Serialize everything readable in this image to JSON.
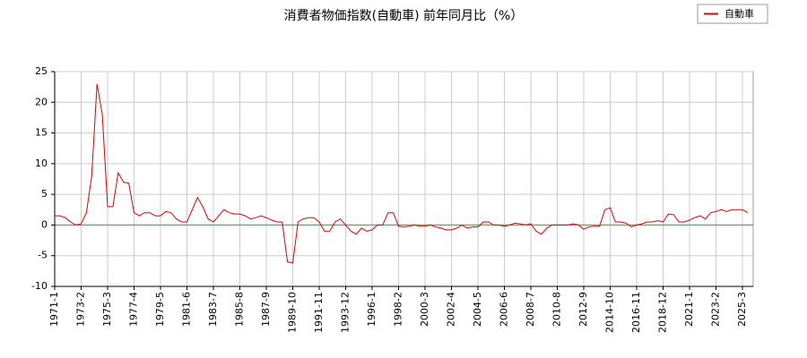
{
  "chart_data": {
    "type": "line",
    "title": "消費者物価指数(自動車) 前年同月比（%）",
    "categories": [
      "1971-1",
      null,
      null,
      null,
      null,
      "1973-2",
      null,
      null,
      null,
      null,
      "1975-3",
      null,
      null,
      null,
      null,
      "1977-4",
      null,
      null,
      null,
      null,
      "1979-5",
      null,
      null,
      null,
      null,
      "1981-6",
      null,
      null,
      null,
      null,
      "1983-7",
      null,
      null,
      null,
      null,
      "1985-8",
      null,
      null,
      null,
      null,
      "1987-9",
      null,
      null,
      null,
      null,
      "1989-10",
      null,
      null,
      null,
      null,
      "1991-11",
      null,
      null,
      null,
      null,
      "1993-12",
      null,
      null,
      null,
      null,
      "1996-1",
      null,
      null,
      null,
      null,
      "1998-2",
      null,
      null,
      null,
      null,
      "2000-3",
      null,
      null,
      null,
      null,
      "2002-4",
      null,
      null,
      null,
      null,
      "2004-5",
      null,
      null,
      null,
      null,
      "2006-6",
      null,
      null,
      null,
      null,
      "2008-7",
      null,
      null,
      null,
      null,
      "2010-8",
      null,
      null,
      null,
      null,
      "2012-9",
      null,
      null,
      null,
      null,
      "2014-10",
      null,
      null,
      null,
      null,
      "2016-11",
      null,
      null,
      null,
      null,
      "2018-12",
      null,
      null,
      null,
      null,
      "2021-1",
      null,
      null,
      null,
      null,
      "2023-2",
      null,
      null,
      null,
      null,
      "2025-3",
      null
    ],
    "series": [
      {
        "name": "自動車",
        "color": "#dd0000",
        "values": [
          1.5,
          1.5,
          1.2,
          0.5,
          0,
          0.2,
          2,
          8,
          23,
          18,
          3,
          3,
          8.5,
          7,
          6.8,
          2,
          1.5,
          2,
          2,
          1.5,
          1.5,
          2.2,
          2,
          1,
          0.5,
          0.5,
          2.5,
          4.5,
          3,
          1,
          0.5,
          1.5,
          2.5,
          2,
          1.8,
          1.8,
          1.5,
          1,
          1.2,
          1.5,
          1.2,
          0.8,
          0.5,
          0.5,
          -6,
          -6.2,
          0.5,
          1,
          1.2,
          1.2,
          0.5,
          -1,
          -1,
          0.5,
          1,
          0,
          -1,
          -1.5,
          -0.5,
          -1,
          -0.8,
          0,
          0,
          2,
          2,
          -0.2,
          -0.3,
          -0.2,
          0,
          -0.2,
          -0.2,
          0,
          -0.3,
          -0.5,
          -0.8,
          -0.8,
          -0.5,
          0,
          -0.5,
          -0.3,
          -0.3,
          0.5,
          0.5,
          0,
          0,
          -0.2,
          0,
          0.3,
          0.2,
          0,
          0.2,
          -1,
          -1.5,
          -0.5,
          0,
          0,
          0,
          0,
          0.2,
          0,
          -0.7,
          -0.3,
          -0.2,
          -0.2,
          2.5,
          2.8,
          0.5,
          0.5,
          0.3,
          -0.3,
          0,
          0.2,
          0.5,
          0.5,
          0.7,
          0.5,
          1.8,
          1.7,
          0.5,
          0.5,
          0.8,
          1.2,
          1.5,
          1,
          2,
          2.2,
          2.5,
          2.2,
          2.5,
          2.5,
          2.5,
          2
        ]
      }
    ],
    "ylim": [
      -10,
      25
    ],
    "yticks": [
      -10,
      -5,
      0,
      5,
      10,
      15,
      20,
      25
    ],
    "grid": true,
    "legend": "top-right"
  }
}
